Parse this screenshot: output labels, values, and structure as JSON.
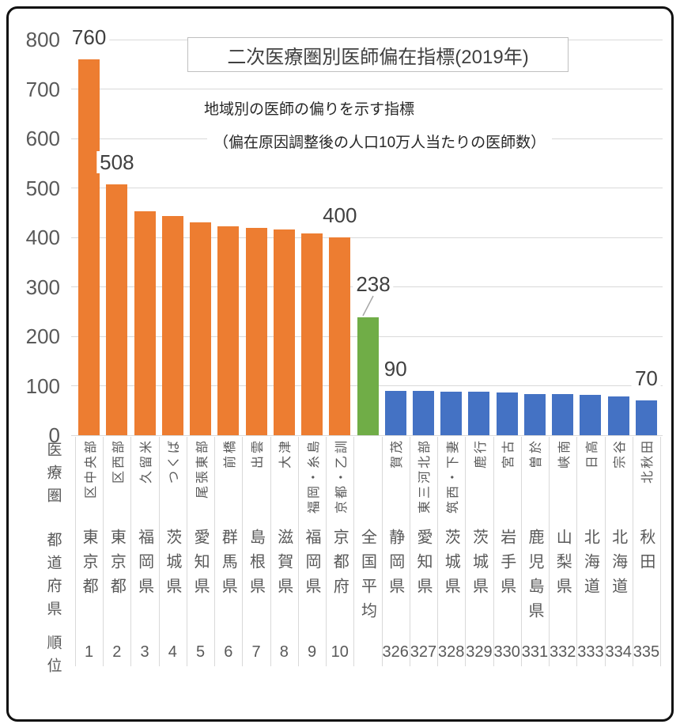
{
  "chart": {
    "title": "二次医療圏別医師偏在指標(2019年)",
    "subtitle_line1": "地域別の医師の偏りを示す指標",
    "subtitle_line2": "（偏在原因調整後の人口10万人当たりの医師数）",
    "row_headers": {
      "area": "医療圏",
      "prefecture": "都道府県",
      "rank": "順位"
    }
  },
  "chart_data": {
    "type": "bar",
    "title": "二次医療圏別医師偏在指標(2019年)",
    "ylim": [
      0,
      800
    ],
    "y_ticks": [
      800,
      700,
      600,
      500,
      400,
      300,
      200,
      100,
      0
    ],
    "grid": true,
    "legend": "none",
    "group_colors": {
      "top10": "#ED7D31",
      "national_avg": "#70AD47",
      "bottom10": "#4472C4"
    },
    "bars": [
      {
        "rank": "1",
        "area": "区中央部",
        "prefecture": "東京都",
        "value": 760,
        "label": "760",
        "group": "top10"
      },
      {
        "rank": "2",
        "area": "区西部",
        "prefecture": "東京都",
        "value": 508,
        "label": "508",
        "group": "top10"
      },
      {
        "rank": "3",
        "area": "久留米",
        "prefecture": "福岡県",
        "value": 453,
        "group": "top10"
      },
      {
        "rank": "4",
        "area": "つくば",
        "prefecture": "茨城県",
        "value": 443,
        "group": "top10"
      },
      {
        "rank": "5",
        "area": "尾張東部",
        "prefecture": "愛知県",
        "value": 430,
        "group": "top10"
      },
      {
        "rank": "6",
        "area": "前橋",
        "prefecture": "群馬県",
        "value": 423,
        "group": "top10"
      },
      {
        "rank": "7",
        "area": "出雲",
        "prefecture": "島根県",
        "value": 420,
        "group": "top10"
      },
      {
        "rank": "8",
        "area": "大津",
        "prefecture": "滋賀県",
        "value": 416,
        "group": "top10"
      },
      {
        "rank": "9",
        "area": "福岡・糸島",
        "prefecture": "福岡県",
        "value": 408,
        "group": "top10"
      },
      {
        "rank": "10",
        "area": "京都・乙訓",
        "prefecture": "京都府",
        "value": 400,
        "label": "400",
        "group": "top10"
      },
      {
        "rank": "",
        "area": "",
        "prefecture": "全国平均",
        "value": 238,
        "label": "238",
        "group": "national_avg",
        "callout": true
      },
      {
        "rank": "326",
        "area": "賀茂",
        "prefecture": "静岡県",
        "value": 90,
        "label": "90",
        "group": "bottom10"
      },
      {
        "rank": "327",
        "area": "東三河北部",
        "prefecture": "愛知県",
        "value": 89,
        "group": "bottom10"
      },
      {
        "rank": "328",
        "area": "筑西・下妻",
        "prefecture": "茨城県",
        "value": 88,
        "group": "bottom10"
      },
      {
        "rank": "329",
        "area": "鹿行",
        "prefecture": "茨城県",
        "value": 88,
        "group": "bottom10"
      },
      {
        "rank": "330",
        "area": "宮古",
        "prefecture": "岩手県",
        "value": 87,
        "group": "bottom10"
      },
      {
        "rank": "331",
        "area": "曽於",
        "prefecture": "鹿児島県",
        "value": 84,
        "group": "bottom10"
      },
      {
        "rank": "332",
        "area": "峡南",
        "prefecture": "山梨県",
        "value": 84,
        "group": "bottom10"
      },
      {
        "rank": "333",
        "area": "日高",
        "prefecture": "北海道",
        "value": 82,
        "group": "bottom10"
      },
      {
        "rank": "334",
        "area": "宗谷",
        "prefecture": "北海道",
        "value": 79,
        "group": "bottom10"
      },
      {
        "rank": "335",
        "area": "北秋田",
        "prefecture": "秋田",
        "value": 70,
        "label": "70",
        "group": "bottom10"
      }
    ]
  }
}
